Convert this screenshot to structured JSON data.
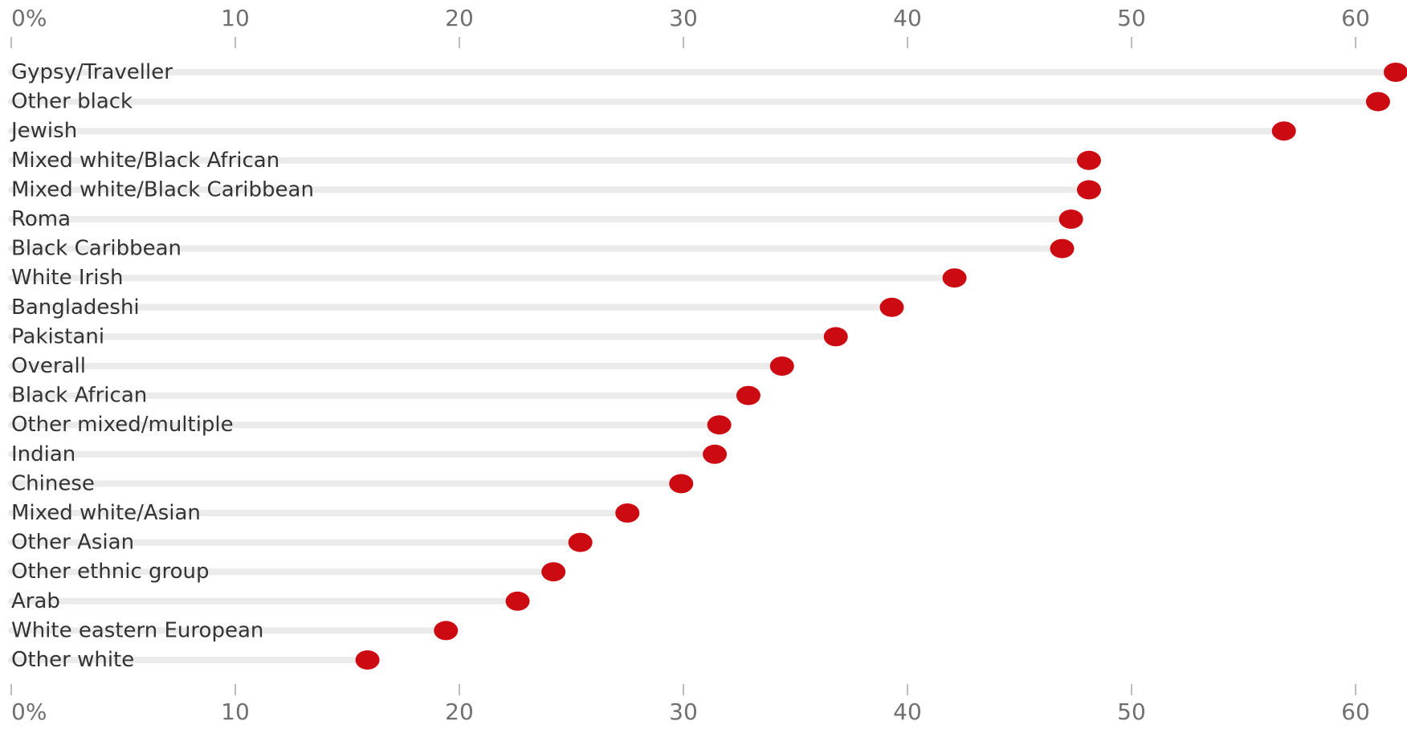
{
  "chart_data": {
    "type": "scatter",
    "orientation": "horizontal",
    "xlim": [
      0,
      62
    ],
    "x_ticks": [
      {
        "value": 0,
        "label": "0%"
      },
      {
        "value": 10,
        "label": "10"
      },
      {
        "value": 20,
        "label": "20"
      },
      {
        "value": 30,
        "label": "30"
      },
      {
        "value": 40,
        "label": "40"
      },
      {
        "value": 50,
        "label": "50"
      },
      {
        "value": 60,
        "label": "60"
      }
    ],
    "axis_position": "top and bottom",
    "grid": false,
    "marker_color": "#cc0a11",
    "track_color": "#ebebeb",
    "categories": [
      "Gypsy/Traveller",
      "Other black",
      "Jewish",
      "Mixed white/Black African",
      "Mixed white/Black Caribbean",
      "Roma",
      "Black Caribbean",
      "White Irish",
      "Bangladeshi",
      "Pakistani",
      "Overall",
      "Black African",
      "Other mixed/multiple",
      "Indian",
      "Chinese",
      "Mixed white/Asian",
      "Other Asian",
      "Other ethnic group",
      "Arab",
      "White eastern European",
      "Other white"
    ],
    "values": [
      62,
      61,
      56.8,
      48.1,
      48.1,
      47.3,
      46.9,
      42.1,
      39.3,
      36.8,
      34.4,
      32.9,
      31.6,
      31.4,
      29.9,
      27.5,
      25.4,
      24.2,
      22.6,
      19.4,
      15.9
    ]
  }
}
